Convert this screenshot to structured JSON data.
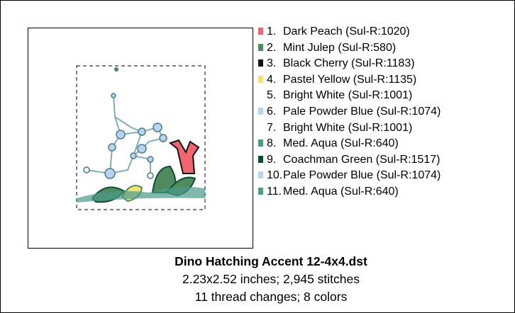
{
  "threads": [
    {
      "number": "1.",
      "name": "Dark Peach (Sul-R:1020)",
      "color": "#f0656f"
    },
    {
      "number": "2.",
      "name": "Mint Julep (Sul-R:580)",
      "color": "#4f8b5c"
    },
    {
      "number": "3.",
      "name": "Black Cherry (Sul-R:1183)",
      "color": "#151515"
    },
    {
      "number": "4.",
      "name": "Pastel Yellow (Sul-R:1135)",
      "color": "#f6e27a"
    },
    {
      "number": "5.",
      "name": "Bright White (Sul-R:1001)",
      "color": "#ffffff"
    },
    {
      "number": "6.",
      "name": "Pale Powder Blue (Sul-R:1074)",
      "color": "#b9d3ef"
    },
    {
      "number": "7.",
      "name": "Bright White (Sul-R:1001)",
      "color": "#ffffff"
    },
    {
      "number": "8.",
      "name": "Med. Aqua (Sul-R:640)",
      "color": "#4b9a8c"
    },
    {
      "number": "9.",
      "name": "Coachman Green (Sul-R:1517)",
      "color": "#0e4b3b"
    },
    {
      "number": "10.",
      "name": "Pale Powder Blue (Sul-R:1074)",
      "color": "#b9d3ef"
    },
    {
      "number": "11.",
      "name": "Med. Aqua (Sul-R:640)",
      "color": "#4b9a8c"
    }
  ],
  "caption": {
    "title": "Dino Hatching Accent 12-4x4.dst",
    "line1": "2.23x2.52 inches; 2,945 stitches",
    "line2": "11 thread changes; 8 colors"
  }
}
